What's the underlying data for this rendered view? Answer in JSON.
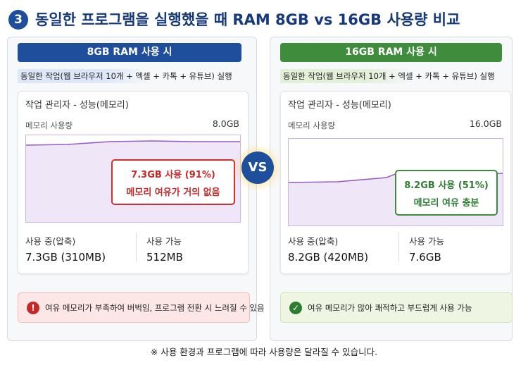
{
  "header": {
    "number": "3",
    "title": "동일한 프로그램을 실행했을 때 RAM 8GB vs 16GB 사용량 비교"
  },
  "panels": [
    {
      "title": "8GB RAM 사용 시",
      "scenario": "동일한 작업(웹 브라우저 10개 + 엑셀 + 카톡 + 유튜브) 실행",
      "window_title": "작업 관리자 - 성능(메모리)",
      "memory_label": "메모리 사용량",
      "total": "8.0GB",
      "callout": [
        "7.3GB 사용 (91%)",
        "메모리 여유가 거의 없음"
      ],
      "stats": [
        {
          "label": "사용 중(압축)",
          "value": "7.3GB (310MB)"
        },
        {
          "label": "사용 가능",
          "value": "512MB"
        }
      ],
      "note": "여유 메모리가 부족하여 버벅임, 프로그램 전환 시 느려질 수 있음"
    },
    {
      "title": "16GB RAM 사용 시",
      "scenario": "동일한 작업(웹 브라우저 10개 + 엑셀 + 카톡 + 유튜브) 실행",
      "window_title": "작업 관리자 - 성능(메모리)",
      "memory_label": "메모리 사용량",
      "total": "16.0GB",
      "callout": [
        "8.2GB 사용 (51%)",
        "메모리 여유 충분"
      ],
      "stats": [
        {
          "label": "사용 중(압축)",
          "value": "8.2GB (420MB)"
        },
        {
          "label": "사용 가능",
          "value": "7.6GB"
        }
      ],
      "note": "여유 메모리가 많아 쾌적하고 부드럽게 사용 가능"
    }
  ],
  "vs": "VS",
  "footnote": "※ 사용 환경과 프로그램에 따라 사용량은 달라질 수 있습니다."
}
